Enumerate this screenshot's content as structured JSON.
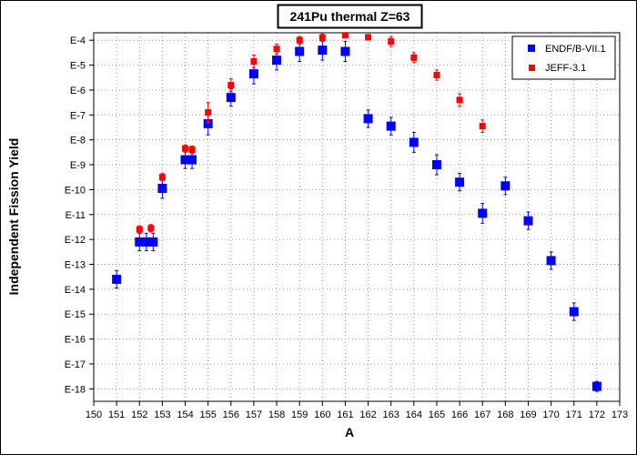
{
  "chart_data": {
    "type": "scatter",
    "title": "241Pu thermal Z=63",
    "xlabel": "A",
    "ylabel": "Independent Fission Yield",
    "xlim": [
      150,
      173
    ],
    "ylim_exp": [
      -18.5,
      -3.7
    ],
    "y_scale": "log",
    "grid": true,
    "legend_position": "top-right",
    "x_ticks": [
      "150",
      "151",
      "152",
      "153",
      "154",
      "155",
      "156",
      "157",
      "158",
      "159",
      "160",
      "161",
      "162",
      "163",
      "164",
      "165",
      "166",
      "167",
      "168",
      "169",
      "170",
      "171",
      "172",
      "173"
    ],
    "y_ticks": [
      "E-4",
      "E-5",
      "E-6",
      "E-7",
      "E-8",
      "E-9",
      "E-10",
      "E-11",
      "E-12",
      "E-13",
      "E-14",
      "E-15",
      "E-16",
      "E-17",
      "E-18"
    ],
    "series": [
      {
        "name": "ENDF/B-VII.1",
        "color": "#0000ff",
        "marker": "square",
        "x": [
          151,
          152,
          152.3,
          152.6,
          153,
          154,
          154.3,
          155,
          156,
          157,
          158,
          159,
          160,
          161,
          162,
          163,
          164,
          165,
          166,
          167,
          168,
          169,
          170,
          171,
          172
        ],
        "y_exp": [
          -13.6,
          -12.1,
          -12.1,
          -12.1,
          -9.95,
          -8.8,
          -8.8,
          -7.35,
          -6.3,
          -5.35,
          -4.8,
          -4.45,
          -4.4,
          -4.45,
          -7.15,
          -7.45,
          -8.1,
          -9.0,
          -9.7,
          -10.95,
          -9.85,
          -11.25,
          -12.85,
          -14.9,
          -17.9
        ],
        "err_exp": [
          0.35,
          0.35,
          0.35,
          0.35,
          0.4,
          0.35,
          0.35,
          0.45,
          0.35,
          0.4,
          0.4,
          0.4,
          0.4,
          0.4,
          0.35,
          0.35,
          0.4,
          0.4,
          0.35,
          0.4,
          0.35,
          0.35,
          0.35,
          0.35,
          0.2
        ]
      },
      {
        "name": "JEFF-3.1",
        "color": "#ff0000",
        "marker": "square",
        "x": [
          152,
          152.5,
          153,
          154,
          154.3,
          155,
          156,
          157,
          158,
          159,
          160,
          161,
          162,
          163,
          164,
          165,
          166,
          167
        ],
        "y_exp": [
          -11.6,
          -11.55,
          -9.5,
          -8.35,
          -8.4,
          -6.9,
          -5.8,
          -4.85,
          -4.35,
          -4.0,
          -3.9,
          -3.8,
          -3.88,
          -4.05,
          -4.7,
          -5.4,
          -6.4,
          -7.45
        ],
        "err_exp": [
          0.15,
          0.15,
          0.15,
          0.15,
          0.15,
          0.4,
          0.25,
          0.25,
          0.2,
          0.15,
          0.15,
          0.1,
          0.1,
          0.2,
          0.2,
          0.2,
          0.25,
          0.25
        ]
      }
    ]
  }
}
